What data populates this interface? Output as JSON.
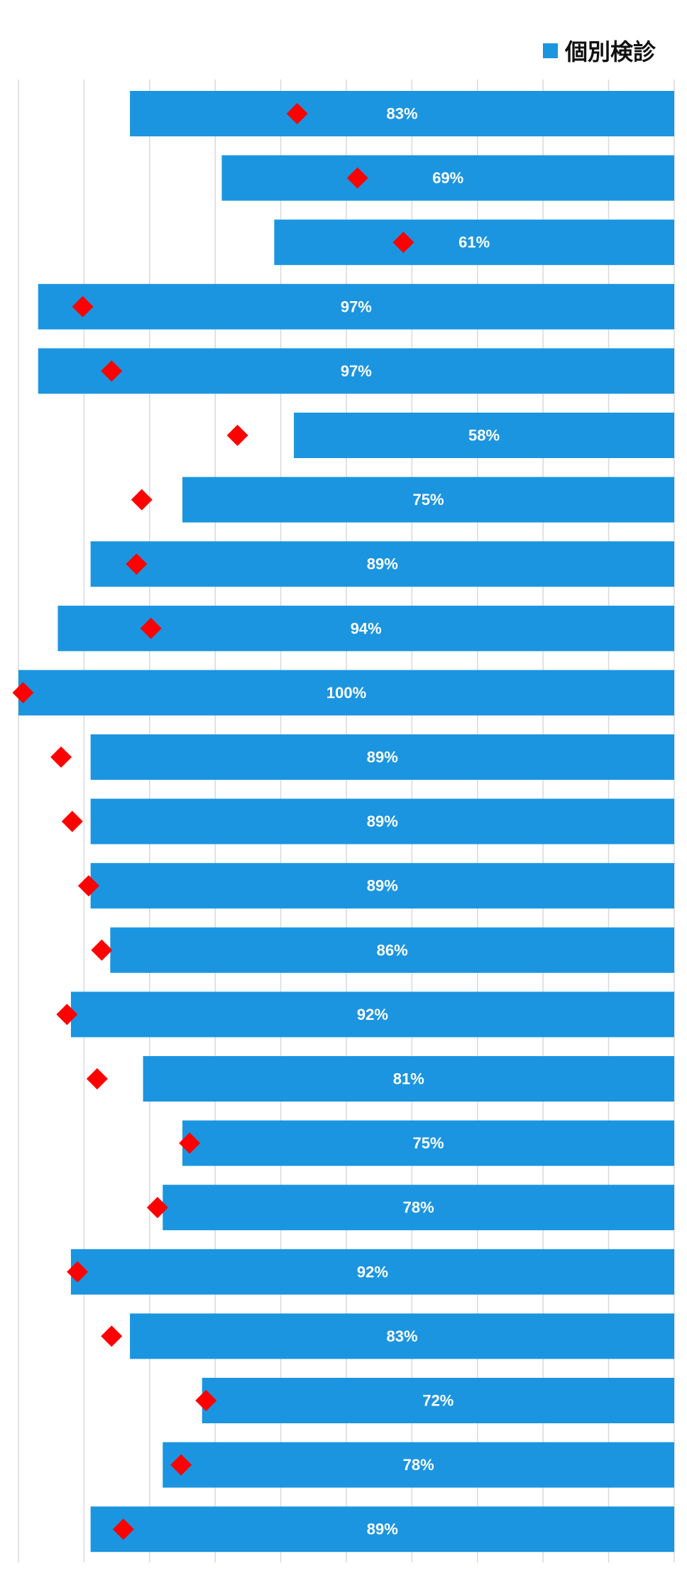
{
  "chart_data": {
    "type": "bar",
    "orientation": "horizontal",
    "bar_alignment": "right",
    "title": "",
    "xlabel": "",
    "ylabel": "",
    "xlim": [
      0,
      100
    ],
    "grid": true,
    "legend_position": "top-right",
    "series": [
      {
        "name": "個別検診",
        "color": "#1B95E0",
        "values": [
          83,
          69,
          61,
          97,
          97,
          58,
          75,
          89,
          94,
          100,
          89,
          89,
          89,
          86,
          92,
          81,
          75,
          78,
          92,
          83,
          72,
          78,
          89
        ],
        "labels": [
          "83%",
          "69%",
          "61%",
          "97%",
          "97%",
          "58%",
          "75%",
          "89%",
          "94%",
          "100%",
          "89%",
          "89%",
          "89%",
          "86%",
          "92%",
          "81%",
          "75%",
          "78%",
          "92%",
          "83%",
          "72%",
          "78%",
          "89%"
        ]
      },
      {
        "name": "",
        "marker": "diamond",
        "color": "#FF0000",
        "values": [
          57.5,
          48.3,
          41.3,
          90.2,
          85.8,
          66.6,
          81.2,
          82.0,
          79.8,
          99.3,
          93.5,
          91.8,
          89.3,
          87.3,
          92.6,
          88.0,
          73.9,
          78.8,
          91.0,
          85.8,
          71.4,
          75.2,
          84.0
        ]
      }
    ]
  },
  "legend": {
    "items": [
      {
        "label": "個別検診",
        "color": "#1B95E0"
      }
    ]
  }
}
